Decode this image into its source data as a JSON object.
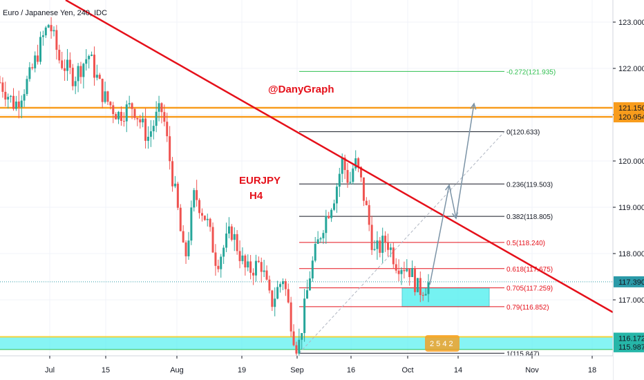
{
  "chart_data": {
    "type": "candlestick",
    "title": "Euro / Japanese Yen, 240, IDC",
    "annotations": {
      "author": "@DanyGraph",
      "pair": "EURJPY",
      "timeframe": "H4"
    },
    "x_ticks": [
      "Jul",
      "15",
      "Aug",
      "19",
      "Sep",
      "16",
      "Oct",
      "14",
      "Nov",
      "18"
    ],
    "ylim": [
      115.8,
      123.35
    ],
    "y_ticks": [
      "123.000",
      "122.000",
      "121.000",
      "120.000",
      "119.000",
      "118.000",
      "117.000"
    ],
    "price_labels": [
      {
        "text": "121.150",
        "value": 121.15,
        "color": "#f89c1c"
      },
      {
        "text": "120.954",
        "value": 120.954,
        "color": "#f89c1c"
      },
      {
        "text": "117.390",
        "value": 117.39,
        "color": "#2b9aa8"
      },
      {
        "text": "116.172",
        "value": 116.172,
        "color": "#26b6a8"
      },
      {
        "text": "115.987",
        "value": 115.987,
        "color": "#26b6a8"
      }
    ],
    "fib_levels": [
      {
        "label": "-0.272(121.935)",
        "value": 121.935,
        "color": "#2fbf4f"
      },
      {
        "label": "0(120.633)",
        "value": 120.633,
        "color": "#131722"
      },
      {
        "label": "0.236(119.503)",
        "value": 119.503,
        "color": "#131722"
      },
      {
        "label": "0.382(118.805)",
        "value": 118.805,
        "color": "#131722"
      },
      {
        "label": "0.5(118.240)",
        "value": 118.24,
        "color": "#e5101a"
      },
      {
        "label": "0.618(117.675)",
        "value": 117.675,
        "color": "#e5101a"
      },
      {
        "label": "0.705(117.259)",
        "value": 117.259,
        "color": "#e5101a"
      },
      {
        "label": "0.79(116.852)",
        "value": 116.852,
        "color": "#e5101a"
      },
      {
        "label": "1(115.847)",
        "value": 115.847,
        "color": "#131722"
      }
    ],
    "resistance_zone": [
      120.954,
      121.15
    ],
    "support_zone": [
      115.987,
      116.172
    ],
    "buy_zone": [
      116.852,
      117.259
    ],
    "current_price": 117.39,
    "event_badge": "2 5 4 2",
    "colors": {
      "up": "#26a69a",
      "down": "#ef5350",
      "trendline": "#e5101a",
      "orange": "#f89c1c",
      "cyan_zone": "#5ef0f0",
      "projection": "#7b93a6"
    },
    "series_keypoints": [
      {
        "x": 0.0,
        "y": 121.7
      },
      {
        "x": 0.3,
        "y": 121.2
      },
      {
        "x": 0.6,
        "y": 121.8
      },
      {
        "x": 0.85,
        "y": 122.6
      },
      {
        "x": 1.0,
        "y": 123.0
      },
      {
        "x": 1.2,
        "y": 122.2
      },
      {
        "x": 1.5,
        "y": 121.8
      },
      {
        "x": 1.8,
        "y": 122.3
      },
      {
        "x": 2.1,
        "y": 121.4
      },
      {
        "x": 2.4,
        "y": 121.0
      },
      {
        "x": 2.7,
        "y": 121.2
      },
      {
        "x": 3.0,
        "y": 120.5
      },
      {
        "x": 3.2,
        "y": 121.0
      },
      {
        "x": 3.3,
        "y": 121.1
      },
      {
        "x": 3.45,
        "y": 120.0
      },
      {
        "x": 3.6,
        "y": 119.0
      },
      {
        "x": 3.75,
        "y": 117.8
      },
      {
        "x": 3.95,
        "y": 119.3
      },
      {
        "x": 4.2,
        "y": 118.7
      },
      {
        "x": 4.4,
        "y": 117.8
      },
      {
        "x": 4.7,
        "y": 118.5
      },
      {
        "x": 5.0,
        "y": 117.6
      },
      {
        "x": 5.3,
        "y": 117.8
      },
      {
        "x": 5.5,
        "y": 116.9
      },
      {
        "x": 5.75,
        "y": 117.5
      },
      {
        "x": 5.95,
        "y": 116.3
      },
      {
        "x": 6.05,
        "y": 115.9
      },
      {
        "x": 6.3,
        "y": 117.6
      },
      {
        "x": 6.55,
        "y": 118.6
      },
      {
        "x": 6.8,
        "y": 119.3
      },
      {
        "x": 6.95,
        "y": 120.0
      },
      {
        "x": 7.1,
        "y": 119.5
      },
      {
        "x": 7.2,
        "y": 120.0
      },
      {
        "x": 7.3,
        "y": 119.7
      },
      {
        "x": 7.45,
        "y": 118.9
      },
      {
        "x": 7.6,
        "y": 118.0
      },
      {
        "x": 7.85,
        "y": 118.3
      },
      {
        "x": 8.05,
        "y": 117.8
      },
      {
        "x": 8.3,
        "y": 117.7
      },
      {
        "x": 8.5,
        "y": 117.2
      },
      {
        "x": 8.7,
        "y": 117.35
      }
    ]
  }
}
